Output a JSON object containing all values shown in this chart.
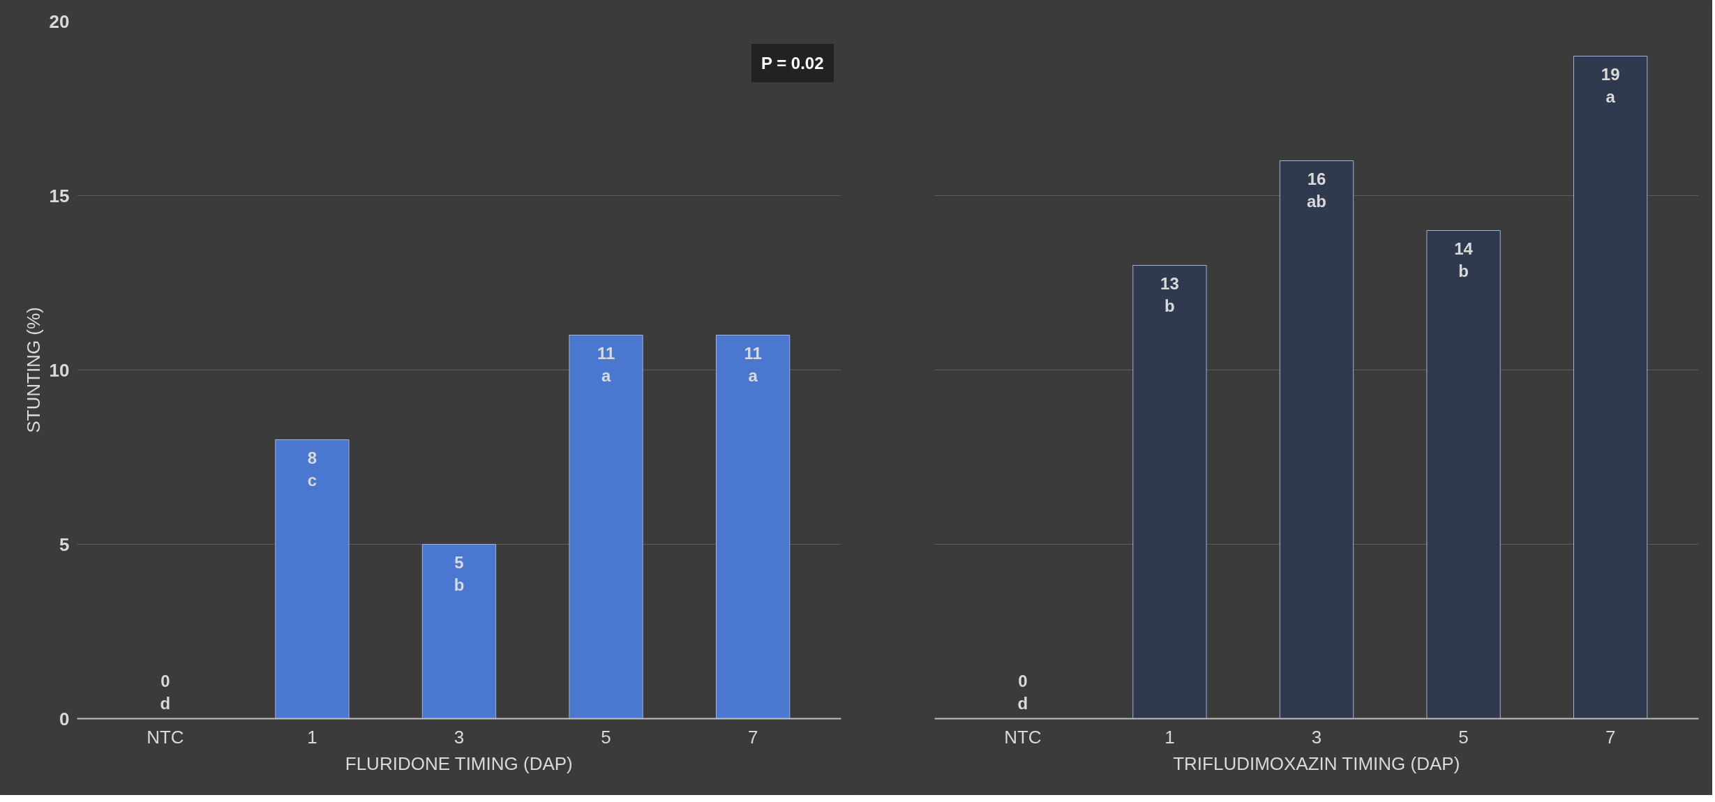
{
  "chart_data": [
    {
      "type": "bar",
      "xlabel": "FLURIDONE TIMING (DAP)",
      "ylabel": "STUNTING (%)",
      "categories": [
        "NTC",
        "1",
        "3",
        "5",
        "7"
      ],
      "values": [
        0,
        8,
        5,
        11,
        11
      ],
      "color": "#4a78d0",
      "value_labels": [
        "0\nd",
        "8\nc",
        "5\nb",
        "11\na",
        "11\na"
      ],
      "ylim": [
        0,
        20
      ],
      "yticks": [
        0,
        5,
        10,
        15,
        20
      ],
      "grid": "y",
      "annotations": [
        "P = 0.02"
      ]
    },
    {
      "type": "bar",
      "xlabel": "TRIFLUDIMOXAZIN TIMING (DAP)",
      "categories": [
        "NTC",
        "1",
        "3",
        "5",
        "7"
      ],
      "values": [
        0,
        13,
        16,
        14,
        19
      ],
      "color": "#2f3a4f",
      "value_labels": [
        "0\nd",
        "13\nb",
        "16\nab",
        "14\nb",
        "19\na"
      ],
      "ylim": [
        0,
        20
      ],
      "yticks": [
        0,
        5,
        10,
        15,
        20
      ],
      "grid": "y",
      "tick_labels": "x"
    }
  ]
}
